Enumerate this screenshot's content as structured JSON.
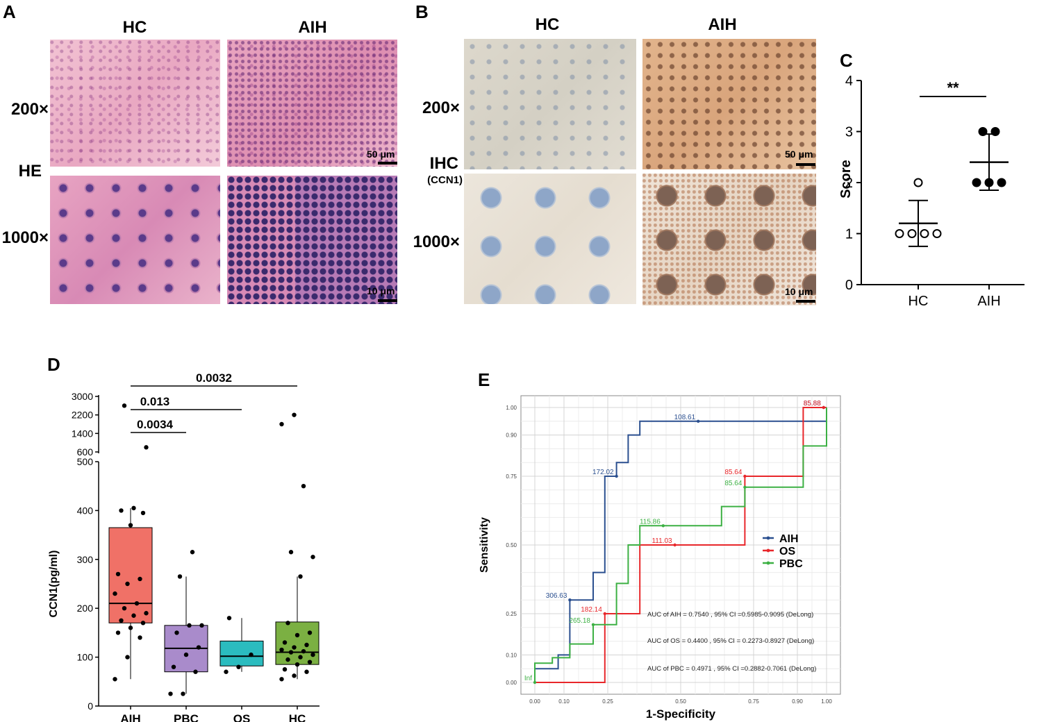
{
  "panels": {
    "A": {
      "letter": "A",
      "col_left": "HC",
      "col_right": "AIH",
      "row_top": "200×",
      "row_mid": "HE",
      "row_bottom": "1000×",
      "scale_top": "50 μm",
      "scale_bottom": "10 μm"
    },
    "B": {
      "letter": "B",
      "col_left": "HC",
      "col_right": "AIH",
      "row_top": "200×",
      "row_mid": "IHC",
      "row_mid_sub": "(CCN1)",
      "row_bottom": "1000×",
      "scale_top": "50 μm",
      "scale_bottom": "10 μm"
    },
    "C": {
      "letter": "C"
    },
    "D": {
      "letter": "D"
    },
    "E": {
      "letter": "E"
    }
  },
  "chart_data": [
    {
      "panel": "C",
      "type": "scatter",
      "ylabel": "Score",
      "categories": [
        "HC",
        "AIH"
      ],
      "ylim": [
        0,
        4
      ],
      "yticks": [
        "0",
        "1",
        "2",
        "3",
        "4"
      ],
      "series": [
        {
          "category": "HC",
          "marker": "open",
          "values": [
            1,
            1,
            1,
            1,
            2
          ],
          "mean": 1.2,
          "sd_low": 0.75,
          "sd_high": 1.65
        },
        {
          "category": "AIH",
          "marker": "filled",
          "values": [
            2,
            2,
            2,
            3,
            3
          ],
          "mean": 2.4,
          "sd_low": 1.85,
          "sd_high": 2.95
        }
      ],
      "annotation": "**"
    },
    {
      "panel": "D",
      "type": "box",
      "ylabel": "CCN1(pg/ml)",
      "categories": [
        "AIH",
        "PBC",
        "OS",
        "HC"
      ],
      "colors": [
        "#f07167",
        "#a98bcb",
        "#2bbcbf",
        "#7bb042"
      ],
      "yticks_lower": [
        "0",
        "100",
        "200",
        "300",
        "400",
        "500"
      ],
      "yticks_upper": [
        "600",
        "1400",
        "2200",
        "3000"
      ],
      "ylim_lower": [
        0,
        500
      ],
      "ylim_upper": [
        600,
        3000
      ],
      "boxes": [
        {
          "category": "AIH",
          "q1": 170,
          "median": 210,
          "q3": 365,
          "whisker_low": 55,
          "whisker_high": 405
        },
        {
          "category": "PBC",
          "q1": 70,
          "median": 118,
          "q3": 165,
          "whisker_low": 25,
          "whisker_high": 265
        },
        {
          "category": "OS",
          "q1": 82,
          "median": 102,
          "q3": 133,
          "whisker_low": 70,
          "whisker_high": 180
        },
        {
          "category": "HC",
          "q1": 85,
          "median": 110,
          "q3": 172,
          "whisker_low": 55,
          "whisker_high": 265
        }
      ],
      "points": [
        {
          "category": "AIH",
          "values": [
            55,
            100,
            140,
            150,
            160,
            170,
            175,
            185,
            190,
            200,
            210,
            230,
            250,
            260,
            270,
            370,
            395,
            400,
            405,
            800,
            2600
          ]
        },
        {
          "category": "PBC",
          "values": [
            25,
            25,
            70,
            80,
            105,
            120,
            150,
            165,
            165,
            265,
            315
          ]
        },
        {
          "category": "OS",
          "values": [
            70,
            80,
            105,
            180
          ]
        },
        {
          "category": "HC",
          "values": [
            55,
            62,
            70,
            75,
            85,
            90,
            95,
            100,
            105,
            110,
            112,
            115,
            120,
            125,
            130,
            145,
            150,
            170,
            265,
            305,
            315,
            450,
            1800,
            2200
          ]
        }
      ],
      "comparisons": [
        {
          "from": "AIH",
          "to": "PBC",
          "label": "0.0034"
        },
        {
          "from": "AIH",
          "to": "OS",
          "label": "0.013"
        },
        {
          "from": "AIH",
          "to": "HC",
          "label": "0.0032"
        }
      ]
    },
    {
      "panel": "E",
      "type": "line",
      "xlabel": "1-Specificity",
      "ylabel": "Sensitivity",
      "xticks": [
        "0.00",
        "0.10",
        "0.25",
        "0.50",
        "0.75",
        "0.90",
        "1.00"
      ],
      "yticks": [
        "0.00",
        "0.10",
        "0.25",
        "0.50",
        "0.75",
        "0.90",
        "1.00"
      ],
      "xtick_values": [
        0,
        0.1,
        0.25,
        0.5,
        0.75,
        0.9,
        1.0
      ],
      "ytick_values": [
        0,
        0.1,
        0.25,
        0.5,
        0.75,
        0.9,
        1.0
      ],
      "legend_position": "right",
      "series": [
        {
          "name": "AIH",
          "color": "#2a4f8f",
          "points": [
            [
              0,
              0.05
            ],
            [
              0.02,
              0.05
            ],
            [
              0.02,
              0.05
            ],
            [
              0.08,
              0.05
            ],
            [
              0.08,
              0.1
            ],
            [
              0.12,
              0.1
            ],
            [
              0.12,
              0.3
            ],
            [
              0.2,
              0.3
            ],
            [
              0.2,
              0.4
            ],
            [
              0.24,
              0.4
            ],
            [
              0.24,
              0.75
            ],
            [
              0.28,
              0.75
            ],
            [
              0.28,
              0.8
            ],
            [
              0.32,
              0.8
            ],
            [
              0.32,
              0.9
            ],
            [
              0.36,
              0.9
            ],
            [
              0.36,
              0.95
            ],
            [
              1.0,
              0.95
            ]
          ],
          "labels": [
            {
              "x": 0.12,
              "y": 0.3,
              "text": "306.63"
            },
            {
              "x": 0.28,
              "y": 0.75,
              "text": "172.02"
            },
            {
              "x": 0.56,
              "y": 0.95,
              "text": "108.61"
            },
            {
              "x": 0.99,
              "y": 1.0,
              "text": "85.88"
            }
          ]
        },
        {
          "name": "OS",
          "color": "#e8262a",
          "points": [
            [
              0,
              0
            ],
            [
              0.24,
              0
            ],
            [
              0.24,
              0.25
            ],
            [
              0.36,
              0.25
            ],
            [
              0.36,
              0.5
            ],
            [
              0.72,
              0.5
            ],
            [
              0.72,
              0.75
            ],
            [
              0.92,
              0.75
            ],
            [
              0.92,
              1.0
            ],
            [
              1.0,
              1.0
            ]
          ],
          "labels": [
            {
              "x": 0.24,
              "y": 0.25,
              "text": "182.14"
            },
            {
              "x": 0.48,
              "y": 0.5,
              "text": "111.03"
            },
            {
              "x": 0.72,
              "y": 0.75,
              "text": "85.64"
            },
            {
              "x": 0.99,
              "y": 1.0,
              "text": "85.88"
            }
          ]
        },
        {
          "name": "PBC",
          "color": "#3cb043",
          "points": [
            [
              0,
              0
            ],
            [
              0,
              0.07
            ],
            [
              0.06,
              0.07
            ],
            [
              0.06,
              0.09
            ],
            [
              0.12,
              0.09
            ],
            [
              0.12,
              0.14
            ],
            [
              0.2,
              0.14
            ],
            [
              0.2,
              0.21
            ],
            [
              0.28,
              0.21
            ],
            [
              0.28,
              0.36
            ],
            [
              0.32,
              0.36
            ],
            [
              0.32,
              0.5
            ],
            [
              0.36,
              0.5
            ],
            [
              0.36,
              0.57
            ],
            [
              0.64,
              0.57
            ],
            [
              0.64,
              0.64
            ],
            [
              0.72,
              0.64
            ],
            [
              0.72,
              0.71
            ],
            [
              0.92,
              0.71
            ],
            [
              0.92,
              0.86
            ],
            [
              1.0,
              0.86
            ],
            [
              1.0,
              1.0
            ]
          ],
          "labels": [
            {
              "x": 0.0,
              "y": 0.0,
              "text": "Inf"
            },
            {
              "x": 0.2,
              "y": 0.21,
              "text": "265.18"
            },
            {
              "x": 0.44,
              "y": 0.57,
              "text": "115.86"
            },
            {
              "x": 0.72,
              "y": 0.71,
              "text": "85.64"
            }
          ]
        }
      ],
      "annotations": [
        "AUC of AIH = 0.7540 , 95% CI =0.5985-0.9095 (DeLong)",
        "AUC of OS = 0.4400 , 95% CI = 0.2273-0.8927 (DeLong)",
        "AUC of PBC = 0.4971 , 95% CI =0.2882-0.7061 (DeLong)"
      ]
    }
  ]
}
